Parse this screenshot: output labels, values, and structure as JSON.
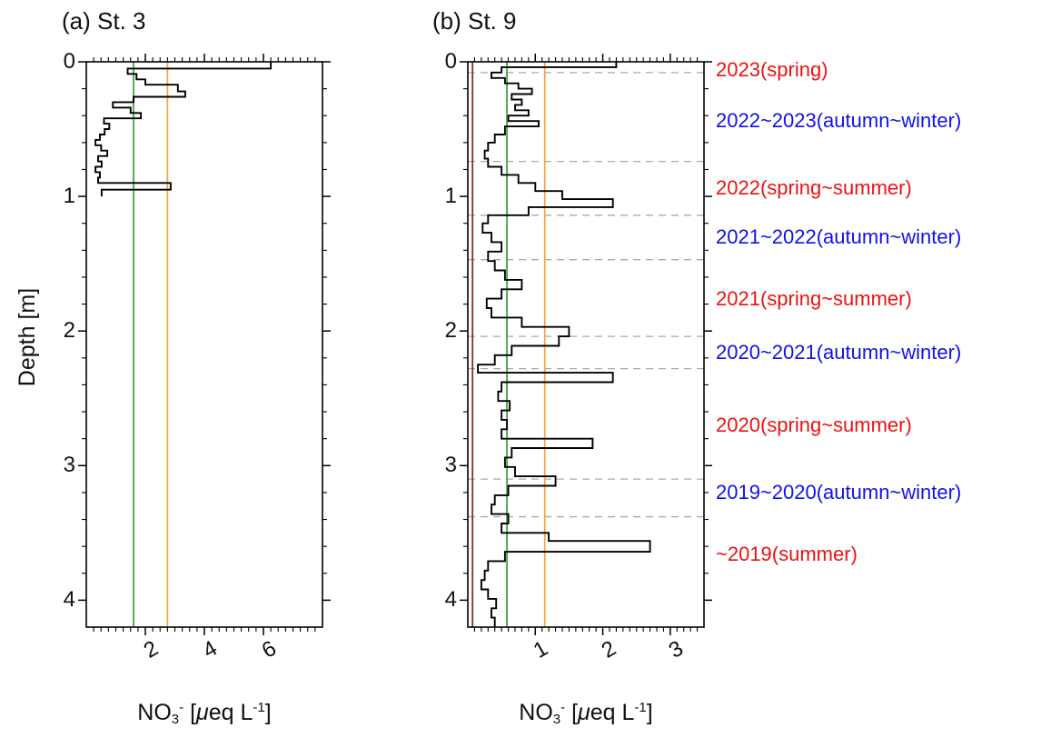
{
  "colors": {
    "red_label": "#ee1111",
    "blue_label": "#1111ee",
    "green_ref": "#3c9b3c",
    "orange_ref": "#f2a43a",
    "darkred_ref": "#8b2222",
    "dashed_gray": "#aaaaaa",
    "axis": "#000000",
    "profile": "#000000"
  },
  "ylabel": "Depth [m]",
  "xlabel_parts": {
    "base": "NO",
    "sub": "3",
    "sup": "-",
    "open": " [",
    "mu": "μ",
    "unit": "eq L",
    "exp": "-1",
    "close": "]"
  },
  "chart_data": [
    {
      "type": "line",
      "panel": "a",
      "title": "(a) St. 3",
      "xlabel": "NO3- [μeq L-1]",
      "ylabel": "Depth [m]",
      "xlim": [
        0,
        8
      ],
      "ylim": [
        0,
        4.2
      ],
      "x_ticks": [
        2,
        4,
        6
      ],
      "x_minor_step": 0.25,
      "y_ticks": [
        0,
        1,
        2,
        3,
        4
      ],
      "y_minor_step": 0.2,
      "grid": false,
      "ref_lines": [
        {
          "x": 1.6,
          "color": "#3c9b3c"
        },
        {
          "x": 2.75,
          "color": "#f2a43a"
        }
      ],
      "profile": {
        "end_depth": 1.0,
        "points": [
          [
            0.0,
            6.25
          ],
          [
            0.05,
            1.4
          ],
          [
            0.09,
            1.7
          ],
          [
            0.13,
            2.0
          ],
          [
            0.17,
            3.1
          ],
          [
            0.22,
            3.35
          ],
          [
            0.26,
            1.6
          ],
          [
            0.3,
            0.9
          ],
          [
            0.34,
            1.5
          ],
          [
            0.38,
            1.85
          ],
          [
            0.42,
            0.6
          ],
          [
            0.46,
            0.78
          ],
          [
            0.5,
            0.62
          ],
          [
            0.54,
            0.46
          ],
          [
            0.58,
            0.31
          ],
          [
            0.62,
            0.5
          ],
          [
            0.66,
            0.71
          ],
          [
            0.7,
            0.4
          ],
          [
            0.74,
            0.52
          ],
          [
            0.78,
            0.31
          ],
          [
            0.82,
            0.46
          ],
          [
            0.86,
            0.4
          ],
          [
            0.9,
            2.86
          ],
          [
            0.95,
            0.52
          ]
        ]
      }
    },
    {
      "type": "line",
      "panel": "b",
      "title": "(b) St. 9",
      "xlabel": "NO3- [μeq L-1]",
      "ylabel": "Depth [m]",
      "xlim": [
        0,
        3.5
      ],
      "ylim": [
        0,
        4.2
      ],
      "x_ticks": [
        1,
        2,
        3
      ],
      "x_minor_step": 0.1,
      "y_ticks": [
        0,
        1,
        2,
        3,
        4
      ],
      "y_minor_step": 0.2,
      "grid": false,
      "ref_lines": [
        {
          "x": 0.07,
          "color": "#8b2222"
        },
        {
          "x": 0.58,
          "color": "#3c9b3c"
        },
        {
          "x": 1.14,
          "color": "#f2a43a"
        }
      ],
      "layer_boundaries": [
        0.08,
        0.74,
        1.14,
        1.47,
        2.04,
        2.28,
        3.1,
        3.38
      ],
      "layers": [
        {
          "label": "2023(spring)",
          "color": "#ee1111",
          "depth": 0.06
        },
        {
          "label": "2022~2023(autumn~winter)",
          "color": "#1111ee",
          "depth": 0.44
        },
        {
          "label": "2022(spring~summer)",
          "color": "#ee1111",
          "depth": 0.94
        },
        {
          "label": "2021~2022(autumn~winter)",
          "color": "#1111ee",
          "depth": 1.3
        },
        {
          "label": "2021(spring~summer)",
          "color": "#ee1111",
          "depth": 1.76
        },
        {
          "label": "2020~2021(autumn~winter)",
          "color": "#1111ee",
          "depth": 2.16
        },
        {
          "label": "2020(spring~summer)",
          "color": "#ee1111",
          "depth": 2.7
        },
        {
          "label": "2019~2020(autumn~winter)",
          "color": "#1111ee",
          "depth": 3.2
        },
        {
          "label": "~2019(summer)",
          "color": "#ee1111",
          "depth": 3.66
        }
      ],
      "profile": {
        "end_depth": 4.2,
        "points": [
          [
            0.0,
            2.2
          ],
          [
            0.04,
            0.5
          ],
          [
            0.08,
            0.35
          ],
          [
            0.12,
            0.55
          ],
          [
            0.16,
            0.75
          ],
          [
            0.2,
            0.95
          ],
          [
            0.24,
            0.65
          ],
          [
            0.28,
            0.8
          ],
          [
            0.32,
            0.7
          ],
          [
            0.36,
            0.9
          ],
          [
            0.4,
            0.6
          ],
          [
            0.44,
            1.05
          ],
          [
            0.48,
            0.55
          ],
          [
            0.54,
            0.4
          ],
          [
            0.6,
            0.3
          ],
          [
            0.66,
            0.25
          ],
          [
            0.72,
            0.3
          ],
          [
            0.78,
            0.5
          ],
          [
            0.84,
            0.75
          ],
          [
            0.9,
            1.0
          ],
          [
            0.96,
            1.4
          ],
          [
            1.02,
            2.15
          ],
          [
            1.08,
            0.9
          ],
          [
            1.14,
            0.3
          ],
          [
            1.2,
            0.22
          ],
          [
            1.27,
            0.35
          ],
          [
            1.34,
            0.5
          ],
          [
            1.41,
            0.3
          ],
          [
            1.48,
            0.4
          ],
          [
            1.55,
            0.55
          ],
          [
            1.62,
            0.8
          ],
          [
            1.69,
            0.5
          ],
          [
            1.76,
            0.28
          ],
          [
            1.83,
            0.35
          ],
          [
            1.9,
            0.8
          ],
          [
            1.97,
            1.5
          ],
          [
            2.04,
            1.35
          ],
          [
            2.11,
            0.65
          ],
          [
            2.18,
            0.4
          ],
          [
            2.25,
            0.15
          ],
          [
            2.31,
            2.15
          ],
          [
            2.38,
            0.5
          ],
          [
            2.45,
            0.45
          ],
          [
            2.52,
            0.62
          ],
          [
            2.59,
            0.5
          ],
          [
            2.66,
            0.58
          ],
          [
            2.73,
            0.5
          ],
          [
            2.8,
            1.85
          ],
          [
            2.87,
            0.65
          ],
          [
            2.94,
            0.55
          ],
          [
            3.01,
            0.7
          ],
          [
            3.08,
            1.3
          ],
          [
            3.15,
            0.6
          ],
          [
            3.22,
            0.4
          ],
          [
            3.29,
            0.35
          ],
          [
            3.36,
            0.6
          ],
          [
            3.43,
            0.5
          ],
          [
            3.5,
            1.2
          ],
          [
            3.56,
            2.7
          ],
          [
            3.64,
            0.55
          ],
          [
            3.71,
            0.3
          ],
          [
            3.78,
            0.25
          ],
          [
            3.85,
            0.2
          ],
          [
            3.92,
            0.3
          ],
          [
            3.99,
            0.42
          ],
          [
            4.06,
            0.35
          ],
          [
            4.13,
            0.4
          ]
        ]
      }
    }
  ]
}
